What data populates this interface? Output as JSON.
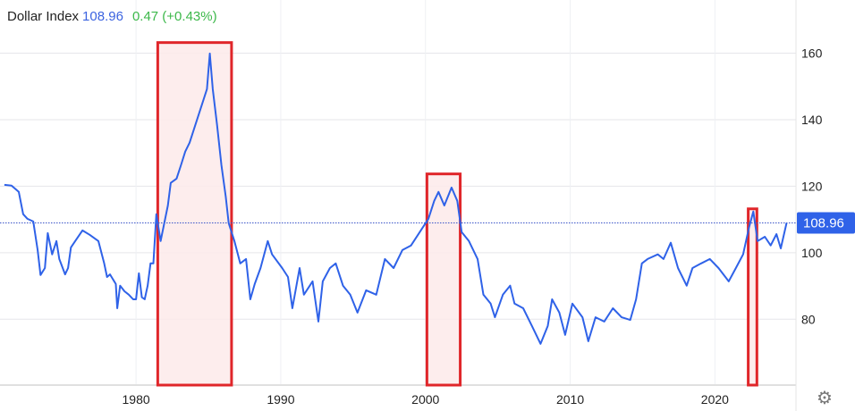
{
  "legend": {
    "title": "Dollar Index",
    "value": "108.96",
    "change": "0.47 (+0.43%)"
  },
  "settings_icon": "gear-icon",
  "chart_data": {
    "type": "line",
    "title": "Dollar Index",
    "last_value_label": "108.96",
    "last_value": 108.96,
    "xlim": [
      1970.6,
      2025.6
    ],
    "ylim": [
      60.2,
      176
    ],
    "x_ticks": [
      1980,
      1990,
      2000,
      2010,
      2020
    ],
    "x_tick_labels": [
      "1980",
      "1990",
      "2000",
      "2010",
      "2020"
    ],
    "y_ticks": [
      80,
      100,
      120,
      140,
      160
    ],
    "y_tick_labels": [
      "80",
      "100",
      "120",
      "140",
      "160"
    ],
    "y_axis_side": "right",
    "grid": true,
    "colors": {
      "line": "#2f62e8",
      "highlight_border": "#e0262a",
      "highlight_fill": "#fdeaea",
      "last_value_badge": "#2f62e8",
      "change_positive": "#3cb84a"
    },
    "highlight_ranges": [
      {
        "x": [
          1981.5,
          1986.6
        ],
        "y_top": 163.2
      },
      {
        "x": [
          2000.1,
          2002.4
        ],
        "y_top": 123.7
      },
      {
        "x": [
          2022.3,
          2022.9
        ],
        "y_top": 113.2
      }
    ],
    "series": [
      {
        "points": [
          [
            1970.9,
            120.4
          ],
          [
            1971.4,
            120.2
          ],
          [
            1971.9,
            118.3
          ],
          [
            1972.2,
            111.6
          ],
          [
            1972.5,
            110.2
          ],
          [
            1972.9,
            109.4
          ],
          [
            1973.2,
            100.8
          ],
          [
            1973.4,
            93.3
          ],
          [
            1973.7,
            95.4
          ],
          [
            1973.9,
            105.9
          ],
          [
            1974.2,
            99.5
          ],
          [
            1974.5,
            103.5
          ],
          [
            1974.7,
            98.1
          ],
          [
            1975.1,
            93.5
          ],
          [
            1975.3,
            95.4
          ],
          [
            1975.5,
            101.6
          ],
          [
            1975.8,
            103.5
          ],
          [
            1976.3,
            106.7
          ],
          [
            1976.8,
            105.4
          ],
          [
            1977.4,
            103.5
          ],
          [
            1977.8,
            96.8
          ],
          [
            1978.0,
            92.7
          ],
          [
            1978.2,
            93.5
          ],
          [
            1978.6,
            90.6
          ],
          [
            1978.7,
            83.3
          ],
          [
            1978.9,
            90.1
          ],
          [
            1979.2,
            88.4
          ],
          [
            1979.5,
            87.4
          ],
          [
            1979.8,
            86.0
          ],
          [
            1980.0,
            86.0
          ],
          [
            1980.2,
            93.8
          ],
          [
            1980.4,
            86.6
          ],
          [
            1980.6,
            86.0
          ],
          [
            1980.8,
            90.1
          ],
          [
            1981.0,
            96.8
          ],
          [
            1981.2,
            96.8
          ],
          [
            1981.4,
            111.6
          ],
          [
            1981.7,
            103.5
          ],
          [
            1982.2,
            114.2
          ],
          [
            1982.4,
            121.0
          ],
          [
            1982.8,
            122.3
          ],
          [
            1983.1,
            126.3
          ],
          [
            1983.4,
            130.4
          ],
          [
            1983.7,
            133.1
          ],
          [
            1984.0,
            137.1
          ],
          [
            1984.5,
            143.8
          ],
          [
            1984.9,
            149.2
          ],
          [
            1985.1,
            159.9
          ],
          [
            1985.3,
            149.2
          ],
          [
            1985.6,
            138.4
          ],
          [
            1985.9,
            126.3
          ],
          [
            1986.2,
            116.9
          ],
          [
            1986.4,
            108.9
          ],
          [
            1986.8,
            103.5
          ],
          [
            1987.2,
            96.8
          ],
          [
            1987.6,
            98.1
          ],
          [
            1987.9,
            86.0
          ],
          [
            1988.2,
            90.6
          ],
          [
            1988.6,
            95.4
          ],
          [
            1989.1,
            103.5
          ],
          [
            1989.4,
            99.5
          ],
          [
            1990.1,
            95.4
          ],
          [
            1990.5,
            92.7
          ],
          [
            1990.8,
            83.3
          ],
          [
            1991.3,
            95.4
          ],
          [
            1991.6,
            87.4
          ],
          [
            1992.2,
            91.4
          ],
          [
            1992.6,
            79.3
          ],
          [
            1992.9,
            91.4
          ],
          [
            1993.4,
            95.4
          ],
          [
            1993.8,
            96.8
          ],
          [
            1994.3,
            90.1
          ],
          [
            1994.8,
            87.4
          ],
          [
            1995.3,
            82.0
          ],
          [
            1995.9,
            88.7
          ],
          [
            1996.6,
            87.4
          ],
          [
            1997.2,
            98.1
          ],
          [
            1997.8,
            95.4
          ],
          [
            1998.4,
            100.8
          ],
          [
            1999.0,
            102.2
          ],
          [
            1999.6,
            106.2
          ],
          [
            2000.2,
            110.2
          ],
          [
            2000.6,
            115.6
          ],
          [
            2000.9,
            118.3
          ],
          [
            2001.3,
            114.2
          ],
          [
            2001.8,
            119.6
          ],
          [
            2002.2,
            115.6
          ],
          [
            2002.5,
            106.2
          ],
          [
            2003.0,
            103.5
          ],
          [
            2003.6,
            98.1
          ],
          [
            2004.0,
            87.4
          ],
          [
            2004.5,
            84.7
          ],
          [
            2004.8,
            80.6
          ],
          [
            2005.35,
            87.4
          ],
          [
            2005.85,
            90.1
          ],
          [
            2006.15,
            84.7
          ],
          [
            2006.75,
            83.3
          ],
          [
            2007.35,
            78.0
          ],
          [
            2007.95,
            72.6
          ],
          [
            2008.45,
            78.0
          ],
          [
            2008.75,
            86.0
          ],
          [
            2009.25,
            82.0
          ],
          [
            2009.65,
            75.3
          ],
          [
            2010.15,
            84.7
          ],
          [
            2010.85,
            80.6
          ],
          [
            2011.25,
            73.4
          ],
          [
            2011.75,
            80.6
          ],
          [
            2012.35,
            79.3
          ],
          [
            2012.95,
            83.3
          ],
          [
            2013.55,
            80.6
          ],
          [
            2014.15,
            79.8
          ],
          [
            2014.55,
            86.0
          ],
          [
            2014.95,
            96.8
          ],
          [
            2015.35,
            98.1
          ],
          [
            2016.05,
            99.5
          ],
          [
            2016.45,
            98.1
          ],
          [
            2016.95,
            103.0
          ],
          [
            2017.45,
            95.4
          ],
          [
            2018.05,
            90.1
          ],
          [
            2018.45,
            95.4
          ],
          [
            2019.05,
            96.8
          ],
          [
            2019.65,
            98.1
          ],
          [
            2020.25,
            95.4
          ],
          [
            2020.95,
            91.4
          ],
          [
            2021.45,
            95.4
          ],
          [
            2021.95,
            99.5
          ],
          [
            2022.35,
            107.5
          ],
          [
            2022.65,
            112.4
          ],
          [
            2022.95,
            103.5
          ],
          [
            2023.45,
            104.8
          ],
          [
            2023.85,
            102.2
          ],
          [
            2024.25,
            105.6
          ],
          [
            2024.55,
            101.3
          ],
          [
            2024.95,
            108.96
          ]
        ]
      }
    ]
  }
}
